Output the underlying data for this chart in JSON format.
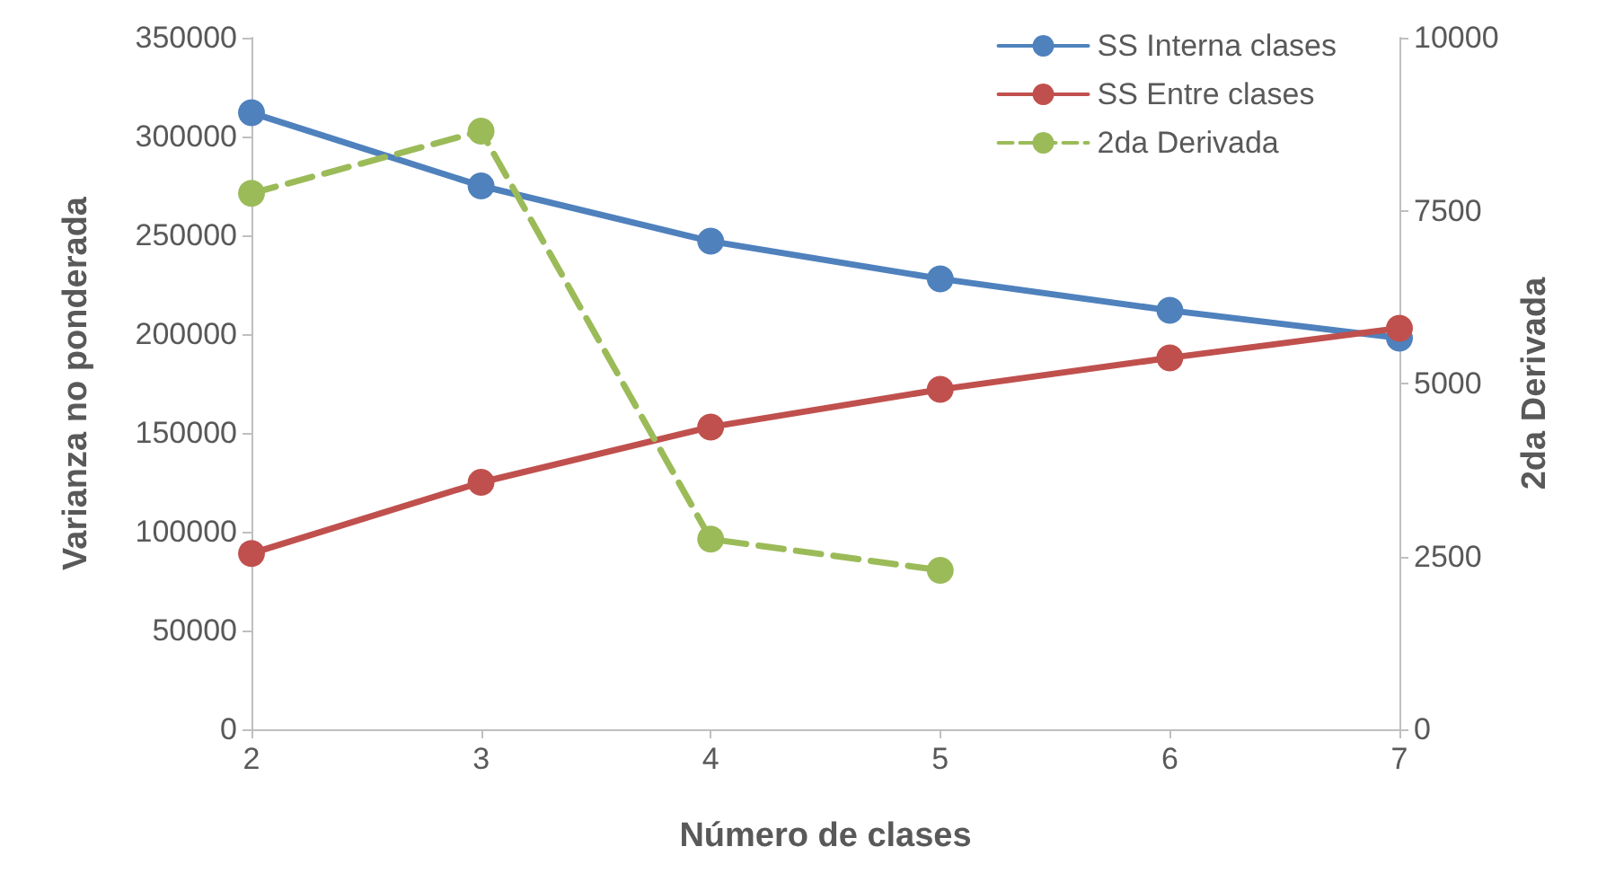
{
  "chart_data": {
    "type": "line",
    "xlabel": "Número de clases",
    "ylabel": "Varianza no ponderada",
    "y2label": "2da Derivada",
    "x": [
      2,
      3,
      4,
      5,
      6,
      7
    ],
    "xlim": [
      2,
      7
    ],
    "xticks": [
      2,
      3,
      4,
      5,
      6,
      7
    ],
    "ylim": [
      0,
      350000
    ],
    "yticks": [
      0,
      50000,
      100000,
      150000,
      200000,
      250000,
      300000,
      350000
    ],
    "y2lim": [
      0,
      10000
    ],
    "y2ticks": [
      0,
      2500,
      5000,
      7500,
      10000
    ],
    "series": [
      {
        "name": "SS Interna clases",
        "color": "#4f81bd",
        "values": [
          312000,
          275000,
          247000,
          228000,
          212000,
          198000
        ],
        "line_style": "solid"
      },
      {
        "name": "SS Entre clases",
        "color": "#c0504d",
        "values": [
          89000,
          125000,
          153000,
          172000,
          188000,
          203000
        ],
        "line_style": "solid"
      },
      {
        "name": "2da Derivada",
        "color": "#9bbb59",
        "values": [
          7750,
          8650,
          2750,
          2300,
          null,
          null
        ],
        "axis": "y2",
        "line_style": "dashed"
      }
    ],
    "marker": "circle",
    "legend": "top right",
    "grid": false
  }
}
